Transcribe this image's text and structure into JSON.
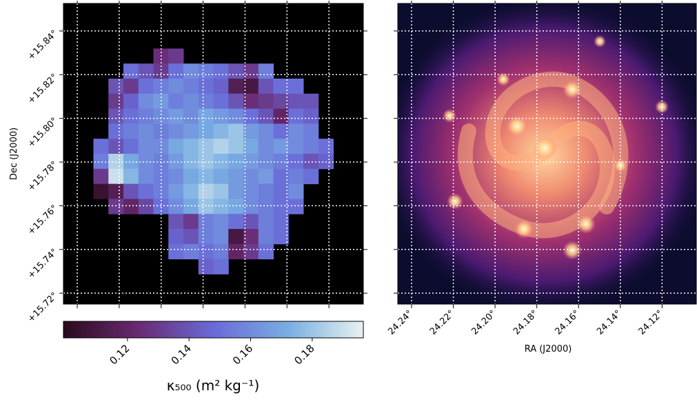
{
  "chart_data": [
    {
      "type": "heatmap",
      "ylabel": "Dec (J2000)",
      "xlim": [
        24.2466,
        24.1036
      ],
      "ylim": [
        15.715,
        15.8526
      ],
      "xticks": [
        24.24,
        24.22,
        24.2,
        24.18,
        24.16,
        24.14,
        24.12
      ],
      "yticks": [
        {
          "value": 15.72,
          "label": "+15.72°"
        },
        {
          "value": 15.74,
          "label": "+15.74°"
        },
        {
          "value": 15.76,
          "label": "+15.76°"
        },
        {
          "value": 15.78,
          "label": "+15.78°"
        },
        {
          "value": 15.8,
          "label": "+15.80°"
        },
        {
          "value": 15.82,
          "label": "+15.82°"
        },
        {
          "value": 15.84,
          "label": "+15.84°"
        }
      ],
      "grid": true,
      "colormap": [
        "#2a0a1e",
        "#6a2a72",
        "#6a6ad8",
        "#79aee2",
        "#e8f2f0"
      ],
      "colorbar": {
        "label": "κ₅₀₀ (m² kg⁻¹)",
        "lim": [
          0.0992,
          0.1966
        ],
        "ticks": [
          0.12,
          0.14,
          0.16,
          0.18
        ]
      },
      "z": [
        [
          null,
          null,
          null,
          null,
          null,
          null,
          null,
          null,
          null,
          null,
          null,
          null,
          null,
          null,
          null,
          null,
          null,
          null,
          null,
          null
        ],
        [
          null,
          null,
          null,
          null,
          null,
          null,
          null,
          null,
          null,
          null,
          null,
          null,
          null,
          null,
          null,
          null,
          null,
          null,
          null,
          null
        ],
        [
          null,
          null,
          null,
          null,
          null,
          null,
          null,
          null,
          null,
          null,
          null,
          null,
          null,
          null,
          null,
          null,
          null,
          null,
          null,
          null
        ],
        [
          null,
          null,
          null,
          null,
          null,
          null,
          0.125,
          0.13,
          null,
          null,
          null,
          null,
          null,
          null,
          null,
          null,
          null,
          null,
          null,
          null
        ],
        [
          null,
          null,
          null,
          null,
          0.15,
          0.14,
          0.13,
          0.15,
          0.16,
          0.155,
          0.15,
          0.14,
          0.13,
          0.155,
          null,
          null,
          null,
          null,
          null,
          null
        ],
        [
          null,
          null,
          null,
          0.14,
          0.13,
          0.15,
          0.155,
          0.16,
          0.155,
          0.15,
          0.145,
          0.115,
          0.11,
          0.14,
          0.15,
          0.15,
          null,
          null,
          null,
          null
        ],
        [
          null,
          null,
          null,
          0.13,
          0.145,
          0.16,
          0.165,
          0.155,
          0.16,
          0.155,
          0.15,
          0.14,
          0.125,
          0.13,
          0.135,
          0.14,
          0.14,
          null,
          null,
          null
        ],
        [
          null,
          null,
          null,
          0.14,
          0.15,
          0.155,
          0.16,
          0.165,
          0.16,
          0.17,
          0.165,
          0.16,
          0.15,
          0.14,
          0.12,
          0.15,
          0.145,
          null,
          null,
          null
        ],
        [
          null,
          null,
          null,
          0.15,
          0.155,
          0.16,
          0.155,
          0.16,
          0.165,
          0.17,
          0.175,
          0.18,
          0.165,
          0.16,
          0.15,
          0.16,
          0.155,
          null,
          null,
          null
        ],
        [
          null,
          null,
          0.15,
          0.14,
          0.15,
          0.16,
          0.16,
          0.17,
          0.175,
          0.18,
          0.185,
          0.18,
          0.17,
          0.16,
          0.165,
          0.16,
          0.155,
          0.15,
          null,
          null
        ],
        [
          null,
          null,
          0.155,
          0.185,
          0.17,
          0.16,
          0.155,
          0.165,
          0.175,
          0.18,
          0.175,
          0.17,
          0.165,
          0.16,
          0.155,
          0.15,
          0.14,
          0.145,
          null,
          null
        ],
        [
          null,
          null,
          0.13,
          0.19,
          0.175,
          0.16,
          0.155,
          0.16,
          0.17,
          0.175,
          0.17,
          0.165,
          0.16,
          0.165,
          0.15,
          0.155,
          0.15,
          null,
          null,
          null
        ],
        [
          null,
          null,
          0.105,
          0.115,
          0.14,
          0.15,
          0.155,
          0.165,
          0.175,
          0.185,
          0.18,
          0.165,
          0.16,
          0.155,
          0.15,
          0.16,
          null,
          null,
          null,
          null
        ],
        [
          null,
          null,
          null,
          0.13,
          0.12,
          0.135,
          0.15,
          0.16,
          0.17,
          0.18,
          0.175,
          0.17,
          0.16,
          0.155,
          0.15,
          0.15,
          null,
          null,
          null,
          null
        ],
        [
          null,
          null,
          null,
          null,
          null,
          null,
          null,
          0.14,
          0.13,
          0.155,
          0.16,
          0.15,
          0.14,
          0.155,
          0.15,
          null,
          null,
          null,
          null,
          null
        ],
        [
          null,
          null,
          null,
          null,
          null,
          null,
          null,
          0.145,
          0.14,
          0.155,
          0.16,
          0.11,
          0.125,
          0.155,
          0.15,
          null,
          null,
          null,
          null,
          null
        ],
        [
          null,
          null,
          null,
          null,
          null,
          null,
          null,
          0.15,
          0.155,
          0.15,
          0.155,
          0.12,
          0.13,
          0.15,
          null,
          null,
          null,
          null,
          null,
          null
        ],
        [
          null,
          null,
          null,
          null,
          null,
          null,
          null,
          null,
          null,
          0.145,
          0.15,
          null,
          null,
          null,
          null,
          null,
          null,
          null,
          null,
          null
        ],
        [
          null,
          null,
          null,
          null,
          null,
          null,
          null,
          null,
          null,
          null,
          null,
          null,
          null,
          null,
          null,
          null,
          null,
          null,
          null,
          null
        ],
        [
          null,
          null,
          null,
          null,
          null,
          null,
          null,
          null,
          null,
          null,
          null,
          null,
          null,
          null,
          null,
          null,
          null,
          null,
          null,
          null
        ]
      ]
    },
    {
      "type": "image",
      "xlabel": "RA (J2000)",
      "xlim": [
        24.2466,
        24.1036
      ],
      "ylim": [
        15.715,
        15.8526
      ],
      "xticks": [
        {
          "value": 24.24,
          "label": "24.24°"
        },
        {
          "value": 24.22,
          "label": "24.22°"
        },
        {
          "value": 24.2,
          "label": "24.20°"
        },
        {
          "value": 24.18,
          "label": "24.18°"
        },
        {
          "value": 24.16,
          "label": "24.16°"
        },
        {
          "value": 24.14,
          "label": "24.14°"
        },
        {
          "value": 24.12,
          "label": "24.12°"
        }
      ],
      "yticks": [
        15.72,
        15.74,
        15.76,
        15.78,
        15.8,
        15.82,
        15.84
      ],
      "grid": true
    }
  ]
}
